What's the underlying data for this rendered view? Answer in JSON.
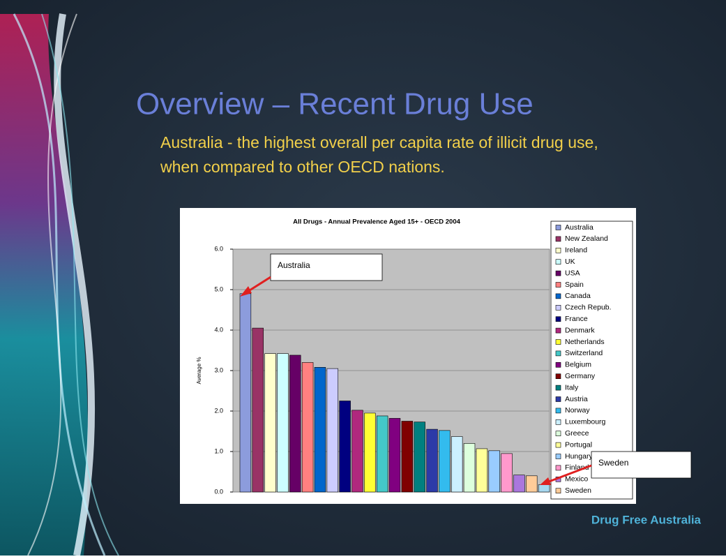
{
  "slide": {
    "title": "Overview – Recent Drug Use",
    "subtitle_lines": [
      "Australia  - the highest overall per capita rate of illicit drug use,",
      "when compared to other OECD nations."
    ],
    "footer": "Drug Free Australia"
  },
  "chart_data": {
    "type": "bar",
    "title": "All Drugs - Annual Prevalence Aged 15+ - OECD 2004",
    "y_label": "Average %",
    "categories": [
      "Australia",
      "New Zealand",
      "Ireland",
      "UK",
      "USA",
      "Spain",
      "Canada",
      "Czech Repub.",
      "France",
      "Denmark",
      "Netherlands",
      "Switzerland",
      "Belgium",
      "Germany",
      "Italy",
      "Austria",
      "Norway",
      "Luxembourg",
      "Greece",
      "Portugal",
      "Hungary",
      "Finland",
      "Mexico",
      "Sweden",
      null
    ],
    "values": [
      4.9,
      4.05,
      3.42,
      3.42,
      3.38,
      3.2,
      3.08,
      3.05,
      2.25,
      2.02,
      1.95,
      1.88,
      1.82,
      1.75,
      1.73,
      1.55,
      1.52,
      1.37,
      1.2,
      1.07,
      1.02,
      0.95,
      0.42,
      0.4,
      0.18
    ],
    "colors": [
      "#8c9cdc",
      "#993366",
      "#ffffcc",
      "#ccffff",
      "#660066",
      "#ff8080",
      "#0066cc",
      "#ccccff",
      "#000080",
      "#b0287e",
      "#ffff33",
      "#44c8c8",
      "#800080",
      "#800000",
      "#008080",
      "#2c3aa8",
      "#33bbee",
      "#ccf0ff",
      "#ddffdd",
      "#ffff99",
      "#99ccff",
      "#ff99cc",
      "#aa77dd",
      "#ffcc99",
      "#a8d8f0"
    ],
    "ylim": [
      0,
      6
    ],
    "yticks": [
      {
        "value": 0,
        "label": "0.0"
      },
      {
        "value": 1,
        "label": "1.0"
      },
      {
        "value": 2,
        "label": "2.0"
      },
      {
        "value": 3,
        "label": "3.0"
      },
      {
        "value": 4,
        "label": "4.0"
      },
      {
        "value": 5,
        "label": "5.0"
      },
      {
        "value": 6,
        "label": "6.0"
      }
    ],
    "grid": true,
    "annotations": [
      "Australia",
      "Sweden"
    ]
  }
}
